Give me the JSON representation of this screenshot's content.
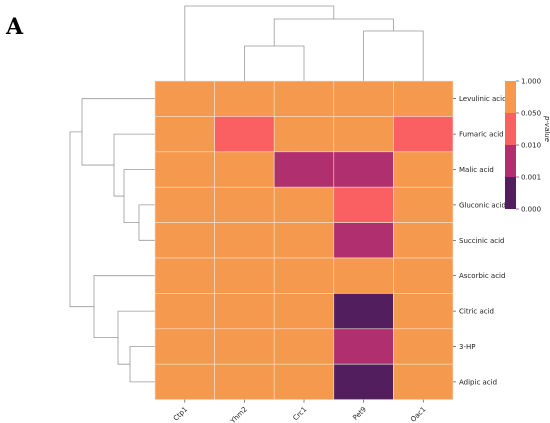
{
  "panel_label": "A",
  "chart_data": {
    "type": "heatmap",
    "title": "",
    "xlabel": "",
    "ylabel": "",
    "columns": [
      "Ctp1",
      "Yhm2",
      "Crc1",
      "Pet9",
      "Oac1"
    ],
    "rows": [
      "Levulinic acid",
      "Fumaric acid",
      "Malic acid",
      "Gluconic acid",
      "Succinic acid",
      "Ascorbic acid",
      "Citric acid",
      "3-HP",
      "Adipic acid"
    ],
    "cell_category": [
      [
        0,
        0,
        0,
        0,
        0
      ],
      [
        0,
        1,
        0,
        0,
        1
      ],
      [
        0,
        0,
        2,
        2,
        0
      ],
      [
        0,
        0,
        0,
        1,
        0
      ],
      [
        0,
        0,
        0,
        2,
        0
      ],
      [
        0,
        0,
        0,
        0,
        0
      ],
      [
        0,
        0,
        0,
        3,
        0
      ],
      [
        0,
        0,
        0,
        2,
        0
      ],
      [
        0,
        0,
        0,
        3,
        0
      ]
    ],
    "colorbar": {
      "label": "p-value",
      "ticks": [
        "1.000",
        "0.050",
        "0.010",
        "0.001",
        "0.000"
      ],
      "colors": [
        "#F5994F",
        "#FA5F62",
        "#B0306F",
        "#521E5E"
      ]
    },
    "colors": {
      "grid_line": "#F3E3D6",
      "dendrogram": "#999999"
    },
    "grid": true,
    "legend_position": "right"
  }
}
